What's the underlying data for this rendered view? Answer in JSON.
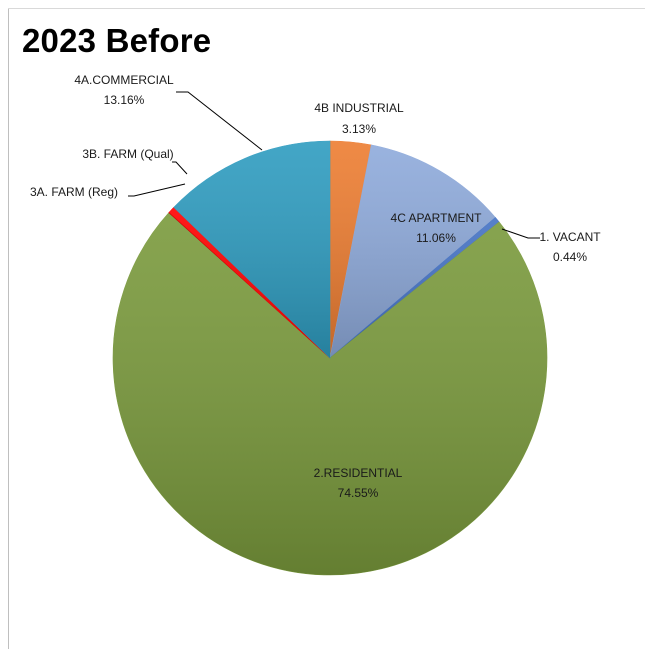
{
  "title": "2023 Before",
  "chart_data": {
    "type": "pie",
    "title": "2023 Before",
    "legend": "none",
    "slices": [
      {
        "name": "4B INDUSTRIAL",
        "value": 3.13,
        "label": "3.13%",
        "color": "#ed7d31"
      },
      {
        "name": "4C APARTMENT",
        "value": 11.06,
        "label": "11.06%",
        "color": "#8eaadb"
      },
      {
        "name": "1. VACANT",
        "value": 0.44,
        "label": "0.44%",
        "color": "#4472c4"
      },
      {
        "name": "2.RESIDENTIAL",
        "value": 74.55,
        "label": "74.55%",
        "color": "#7a9a3c"
      },
      {
        "name": "3A. FARM  (Reg)",
        "value": 0.05,
        "label": "",
        "color": "#c00000"
      },
      {
        "name": "3B. FARM  (Qual)",
        "value": 0.5,
        "label": "",
        "color": "#ff0000"
      },
      {
        "name": "4A.COMMERCIAL",
        "value": 13.16,
        "label": "13.16%",
        "color": "#2e9cc0"
      }
    ]
  }
}
